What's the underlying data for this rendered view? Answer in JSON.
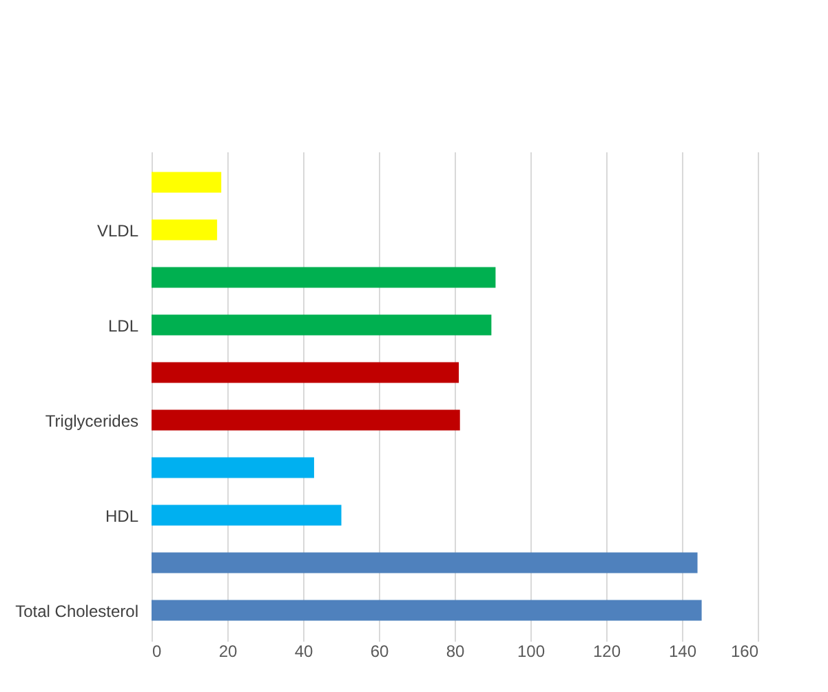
{
  "chart_data": {
    "type": "bar",
    "orientation": "horizontal",
    "categories": [
      null,
      "VLDL",
      null,
      "LDL",
      null,
      "Triglycerides",
      null,
      "HDL",
      null,
      "Total Cholesterol"
    ],
    "values": [
      18.4,
      17.3,
      90.8,
      89.7,
      81.1,
      81.4,
      42.9,
      50.1,
      144.1,
      145.2
    ],
    "colors": [
      "#ffff00",
      "#ffff00",
      "#00b050",
      "#00b050",
      "#c00000",
      "#c00000",
      "#00b0f0",
      "#00b0f0",
      "#4f81bd",
      "#4f81bd"
    ],
    "xlim": [
      0,
      160
    ],
    "xticks": [
      0,
      20,
      40,
      60,
      80,
      100,
      120,
      140,
      160
    ],
    "grid": "x"
  }
}
